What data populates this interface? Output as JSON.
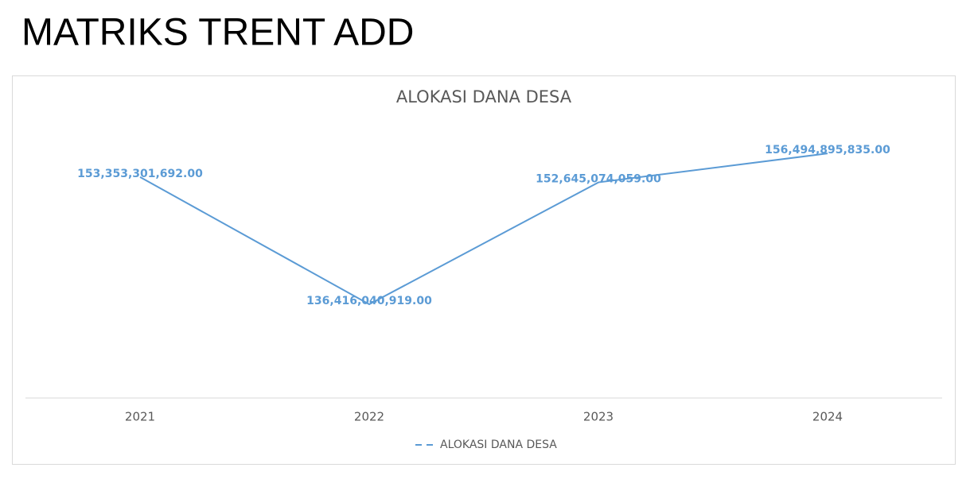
{
  "heading": "MATRIKS TRENT ADD",
  "chart_data": {
    "type": "line",
    "title": "ALOKASI DANA DESA",
    "categories": [
      "2021",
      "2022",
      "2023",
      "2024"
    ],
    "series": [
      {
        "name": "ALOKASI DANA DESA",
        "color": "#5b9bd5",
        "values": [
          153353301692,
          136416040919,
          152645074059,
          156494895835
        ],
        "value_labels": [
          "153,353,301,692.00",
          "136,416,040,919.00",
          "152,645,074,059.00",
          "156,494,895,835.00"
        ]
      }
    ],
    "ylim": [
      125000000000,
      160000000000
    ],
    "legend": "bottom"
  }
}
